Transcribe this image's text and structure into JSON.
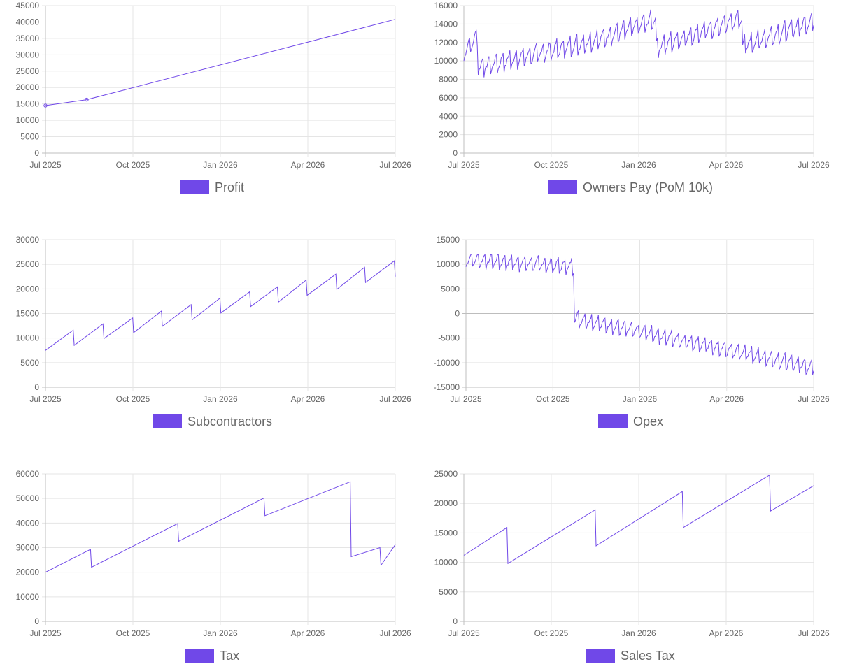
{
  "style": {
    "line_color": "#7048e8",
    "legend_fill": "#7048e8",
    "grid_color": "#e5e5e5",
    "tick_color": "#666666"
  },
  "chart_data": [
    {
      "type": "line",
      "legend": "Profit",
      "x_ticks": [
        "Jul 2025",
        "Oct 2025",
        "Jan 2026",
        "Apr 2026",
        "Jul 2026"
      ],
      "y_ticks": [
        0,
        5000,
        10000,
        15000,
        20000,
        25000,
        30000,
        35000,
        40000,
        45000
      ],
      "ylim": [
        0,
        45000
      ],
      "xlim": [
        "2025-07-01",
        "2026-07-01"
      ],
      "grid": true,
      "legend_position": "bottom",
      "series": [
        {
          "x": [
            "2025-07-01",
            "2025-08-13",
            "2025-10-01",
            "2026-07-01"
          ],
          "values": [
            14500,
            16300,
            20000,
            40800
          ]
        }
      ],
      "markers": [
        {
          "x": "2025-07-01",
          "y": 14500
        },
        {
          "x": "2025-08-13",
          "y": 16300
        }
      ]
    },
    {
      "type": "line",
      "legend": "Owners Pay (PoM 10k)",
      "x_ticks": [
        "Jul 2025",
        "Oct 2025",
        "Jan 2026",
        "Apr 2026",
        "Jul 2026"
      ],
      "y_ticks": [
        0,
        2000,
        4000,
        6000,
        8000,
        10000,
        12000,
        14000,
        16000
      ],
      "ylim": [
        0,
        16000
      ],
      "xlim": [
        "2025-07-01",
        "2026-07-01"
      ],
      "grid": true,
      "legend_position": "bottom",
      "series": [
        {
          "pattern": "weekly_sawtooth",
          "x": [
            "2025-07-01",
            "2025-07-15",
            "2025-07-16",
            "2025-11-15",
            "2026-01-17",
            "2026-01-18",
            "2026-04-17",
            "2026-04-18",
            "2026-07-01"
          ],
          "values": [
            11000,
            12600,
            9300,
            12200,
            14500,
            11500,
            14600,
            11600,
            14300
          ],
          "amplitude": 2000
        }
      ]
    },
    {
      "type": "line",
      "legend": "Subcontractors",
      "x_ticks": [
        "Jul 2025",
        "Oct 2025",
        "Jan 2026",
        "Apr 2026",
        "Jul 2026"
      ],
      "y_ticks": [
        0,
        5000,
        10000,
        15000,
        20000,
        25000,
        30000
      ],
      "ylim": [
        0,
        30000
      ],
      "xlim": [
        "2025-07-01",
        "2026-07-01"
      ],
      "grid": true,
      "legend_position": "bottom",
      "series": [
        {
          "x": [
            "2025-07-01",
            "2025-07-30",
            "2025-07-31",
            "2025-08-30",
            "2025-08-31",
            "2025-09-30",
            "2025-10-01",
            "2025-10-30",
            "2025-10-31",
            "2025-11-30",
            "2025-12-01",
            "2025-12-30",
            "2025-12-31",
            "2026-01-30",
            "2026-01-31",
            "2026-02-28",
            "2026-03-01",
            "2026-03-30",
            "2026-03-31",
            "2026-04-30",
            "2026-05-01",
            "2026-05-30",
            "2026-05-31",
            "2026-06-30",
            "2026-07-01"
          ],
          "values": [
            7500,
            11600,
            8500,
            12900,
            9900,
            14100,
            11100,
            15500,
            12400,
            16800,
            13700,
            18100,
            15100,
            19400,
            16400,
            20400,
            17300,
            21800,
            18700,
            23000,
            19900,
            24400,
            21300,
            25700,
            22500
          ]
        }
      ]
    },
    {
      "type": "line",
      "legend": "Opex",
      "x_ticks": [
        "Jul 2025",
        "Oct 2025",
        "Jan 2026",
        "Apr 2026",
        "Jul 2026"
      ],
      "y_ticks": [
        -15000,
        -10000,
        -5000,
        0,
        5000,
        10000,
        15000
      ],
      "ylim": [
        -15000,
        15000
      ],
      "xlim": [
        "2025-07-01",
        "2026-07-01"
      ],
      "grid": true,
      "legend_position": "bottom",
      "series": [
        {
          "pattern": "weekly_sawtooth",
          "x": [
            "2025-07-01",
            "2025-10-22",
            "2025-10-23",
            "2026-07-01"
          ],
          "values": [
            11000,
            9500,
            -1000,
            -11000
          ],
          "amplitude": 3000
        }
      ]
    },
    {
      "type": "line",
      "legend": "Tax",
      "x_ticks": [
        "Jul 2025",
        "Oct 2025",
        "Jan 2026",
        "Apr 2026",
        "Jul 2026"
      ],
      "y_ticks": [
        0,
        10000,
        20000,
        30000,
        40000,
        50000,
        60000
      ],
      "ylim": [
        0,
        60000
      ],
      "xlim": [
        "2025-07-01",
        "2026-07-01"
      ],
      "grid": true,
      "legend_position": "bottom",
      "series": [
        {
          "x": [
            "2025-07-01",
            "2025-08-17",
            "2025-08-18",
            "2025-11-16",
            "2025-11-17",
            "2026-02-14",
            "2026-02-15",
            "2026-05-15",
            "2026-05-16",
            "2026-06-15",
            "2026-06-16",
            "2026-07-01"
          ],
          "values": [
            20000,
            29300,
            22000,
            39800,
            32600,
            50200,
            43000,
            56800,
            26300,
            30000,
            22800,
            31200
          ]
        }
      ]
    },
    {
      "type": "line",
      "legend": "Sales Tax",
      "x_ticks": [
        "Jul 2025",
        "Oct 2025",
        "Jan 2026",
        "Apr 2026",
        "Jul 2026"
      ],
      "y_ticks": [
        0,
        5000,
        10000,
        15000,
        20000,
        25000
      ],
      "ylim": [
        0,
        25000
      ],
      "xlim": [
        "2025-07-01",
        "2026-07-01"
      ],
      "grid": true,
      "legend_position": "bottom",
      "series": [
        {
          "x": [
            "2025-07-01",
            "2025-08-15",
            "2025-08-16",
            "2025-11-15",
            "2025-11-16",
            "2026-02-14",
            "2026-02-15",
            "2026-05-16",
            "2026-05-17",
            "2026-07-01"
          ],
          "values": [
            11200,
            15900,
            9800,
            18900,
            12800,
            22000,
            15900,
            24800,
            18700,
            23000
          ]
        }
      ]
    }
  ]
}
